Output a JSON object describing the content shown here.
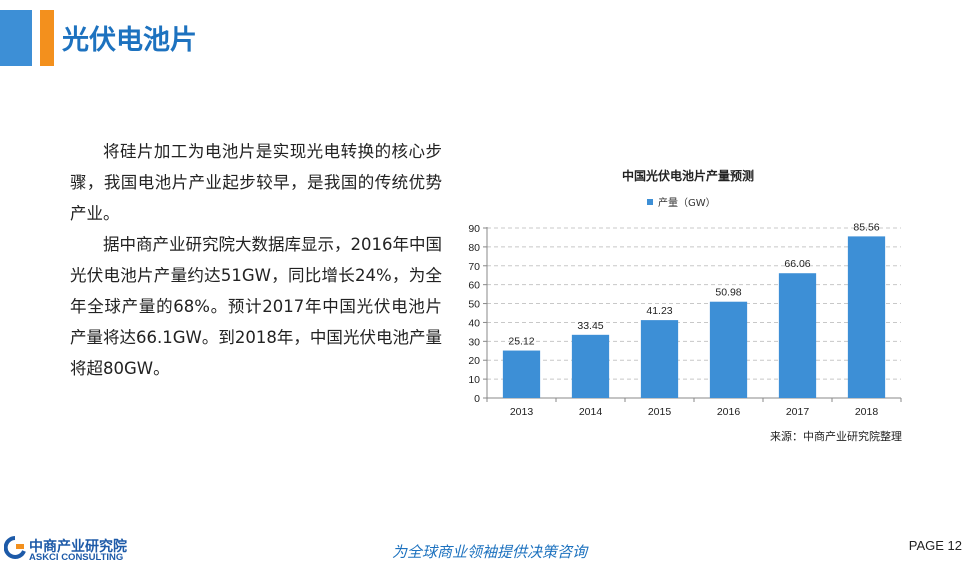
{
  "header": {
    "title": "光伏电池片",
    "accent_blue": "#3d8fd6",
    "accent_orange": "#f3901d"
  },
  "body": {
    "paragraphs": [
      "将硅片加工为电池片是实现光电转换的核心步骤，我国电池片产业起步较早，是我国的传统优势产业。",
      "据中商产业研究院大数据库显示，2016年中国光伏电池片产量约达51GW，同比增长24%，为全年全球产量的68%。预计2017年中国光伏电池片产量将达66.1GW。到2018年，中国光伏电池产量将超80GW。"
    ]
  },
  "chart_data": {
    "type": "bar",
    "title": "中国光伏电池片产量预测",
    "categories": [
      "2013",
      "2014",
      "2015",
      "2016",
      "2017",
      "2018"
    ],
    "series": [
      {
        "name": "产量（GW）",
        "values": [
          25.12,
          33.45,
          41.23,
          50.98,
          66.06,
          85.56
        ],
        "color": "#3d8fd6"
      }
    ],
    "ylim": [
      0,
      90
    ],
    "yticks": [
      0,
      10,
      20,
      30,
      40,
      50,
      60,
      70,
      80,
      90
    ],
    "grid": true,
    "legend": "top",
    "source": "来源：中商产业研究院整理"
  },
  "footer": {
    "logo_cn": "中商产业研究院",
    "logo_en": "ASKCI CONSULTING",
    "slogan": "为全球商业领袖提供决策咨询",
    "page": "PAGE  12"
  }
}
